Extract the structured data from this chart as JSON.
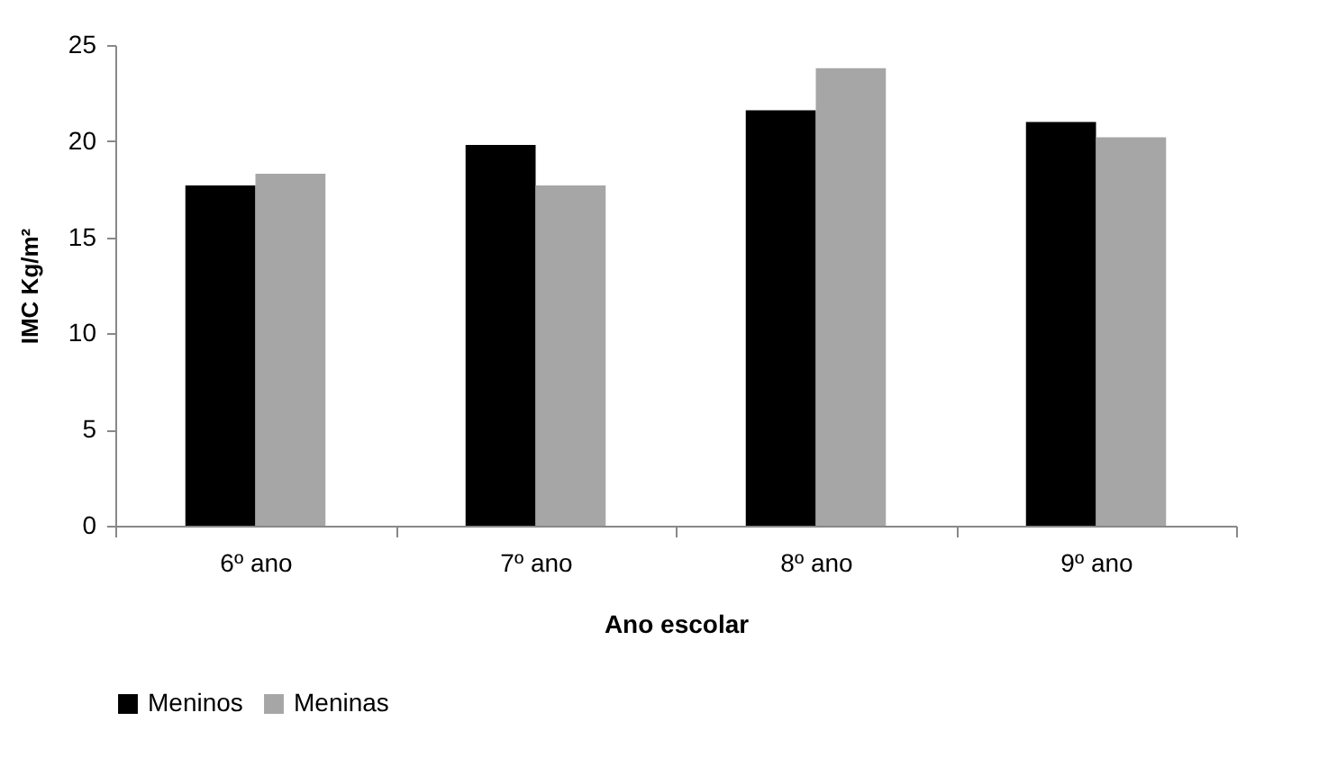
{
  "chart_data": {
    "type": "bar",
    "xlabel": "Ano escolar",
    "ylabel": "IMC Kg/m²",
    "categories": [
      "6º ano",
      "7º ano",
      "8º ano",
      "9º ano"
    ],
    "series": [
      {
        "name": "Meninos",
        "color": "#000000",
        "values": [
          17.7,
          19.8,
          21.6,
          21.0
        ]
      },
      {
        "name": "Meninas",
        "color": "#a6a6a6",
        "values": [
          18.3,
          17.7,
          23.8,
          20.2
        ]
      }
    ],
    "ylim": [
      0,
      25
    ],
    "yticks": [
      0,
      5,
      10,
      15,
      20,
      25
    ],
    "grid": false,
    "legend": "bottom"
  }
}
